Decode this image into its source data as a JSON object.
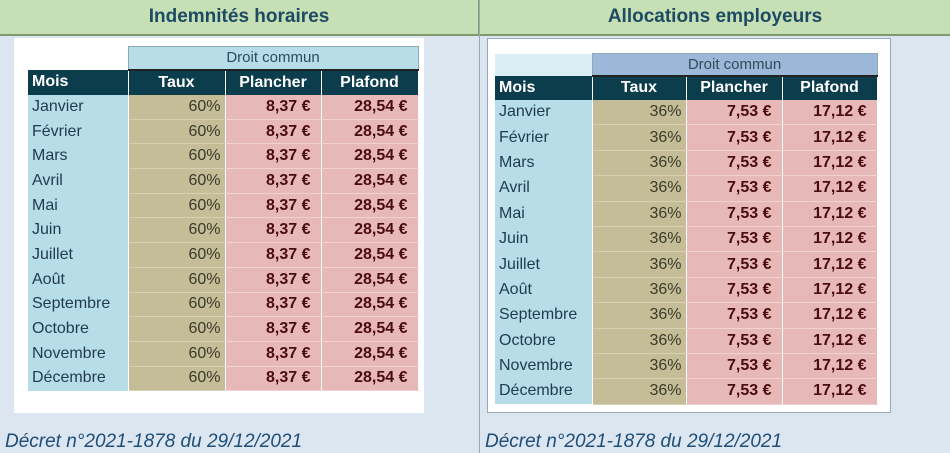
{
  "left": {
    "title": "Indemnités horaires",
    "group_header": "Droit commun",
    "columns": [
      "Mois",
      "Taux",
      "Plancher",
      "Plafond"
    ],
    "rows": [
      {
        "mois": "Janvier",
        "taux": "60%",
        "plancher": "8,37 €",
        "plafond": "28,54 €"
      },
      {
        "mois": "Février",
        "taux": "60%",
        "plancher": "8,37 €",
        "plafond": "28,54 €"
      },
      {
        "mois": "Mars",
        "taux": "60%",
        "plancher": "8,37 €",
        "plafond": "28,54 €"
      },
      {
        "mois": "Avril",
        "taux": "60%",
        "plancher": "8,37 €",
        "plafond": "28,54 €"
      },
      {
        "mois": "Mai",
        "taux": "60%",
        "plancher": "8,37 €",
        "plafond": "28,54 €"
      },
      {
        "mois": "Juin",
        "taux": "60%",
        "plancher": "8,37 €",
        "plafond": "28,54 €"
      },
      {
        "mois": "Juillet",
        "taux": "60%",
        "plancher": "8,37 €",
        "plafond": "28,54 €"
      },
      {
        "mois": "Août",
        "taux": "60%",
        "plancher": "8,37 €",
        "plafond": "28,54 €"
      },
      {
        "mois": "Septembre",
        "taux": "60%",
        "plancher": "8,37 €",
        "plafond": "28,54 €"
      },
      {
        "mois": "Octobre",
        "taux": "60%",
        "plancher": "8,37 €",
        "plafond": "28,54 €"
      },
      {
        "mois": "Novembre",
        "taux": "60%",
        "plancher": "8,37 €",
        "plafond": "28,54 €"
      },
      {
        "mois": "Décembre",
        "taux": "60%",
        "plancher": "8,37 €",
        "plafond": "28,54 €"
      }
    ],
    "decree": "Décret n°2021-1878 du 29/12/2021"
  },
  "right": {
    "title": "Allocations employeurs",
    "group_header": "Droit commun",
    "columns": [
      "Mois",
      "Taux",
      "Plancher",
      "Plafond"
    ],
    "rows": [
      {
        "mois": "Janvier",
        "taux": "36%",
        "plancher": "7,53 €",
        "plafond": "17,12 €"
      },
      {
        "mois": "Février",
        "taux": "36%",
        "plancher": "7,53 €",
        "plafond": "17,12 €"
      },
      {
        "mois": "Mars",
        "taux": "36%",
        "plancher": "7,53 €",
        "plafond": "17,12 €"
      },
      {
        "mois": "Avril",
        "taux": "36%",
        "plancher": "7,53 €",
        "plafond": "17,12 €"
      },
      {
        "mois": "Mai",
        "taux": "36%",
        "plancher": "7,53 €",
        "plafond": "17,12 €"
      },
      {
        "mois": "Juin",
        "taux": "36%",
        "plancher": "7,53 €",
        "plafond": "17,12 €"
      },
      {
        "mois": "Juillet",
        "taux": "36%",
        "plancher": "7,53 €",
        "plafond": "17,12 €"
      },
      {
        "mois": "Août",
        "taux": "36%",
        "plancher": "7,53 €",
        "plafond": "17,12 €"
      },
      {
        "mois": "Septembre",
        "taux": "36%",
        "plancher": "7,53 €",
        "plafond": "17,12 €"
      },
      {
        "mois": "Octobre",
        "taux": "36%",
        "plancher": "7,53 €",
        "plafond": "17,12 €"
      },
      {
        "mois": "Novembre",
        "taux": "36%",
        "plancher": "7,53 €",
        "plafond": "17,12 €"
      },
      {
        "mois": "Décembre",
        "taux": "36%",
        "plancher": "7,53 €",
        "plafond": "17,12 €"
      }
    ],
    "decree": "Décret n°2021-1878 du 29/12/2021"
  },
  "colors": {
    "banner": "#c6dfb4",
    "title_text": "#1c4b63",
    "header_bg": "#0b3d4d",
    "month_bg": "#b7dde8",
    "rate_bg": "#c4bd97",
    "money_bg": "#e6b8b7",
    "money_text": "#4a0c0c",
    "decree_text": "#1f4e78"
  }
}
